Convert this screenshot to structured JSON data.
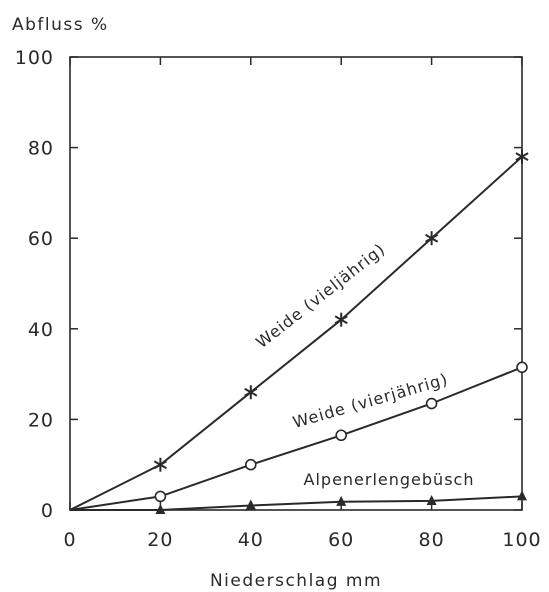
{
  "chart_data": {
    "type": "line",
    "ylabel": "Abfluss %",
    "xlabel": "Niederschlag mm",
    "xlim": [
      0,
      100
    ],
    "ylim": [
      0,
      100
    ],
    "xticks": [
      0,
      20,
      40,
      60,
      80,
      100
    ],
    "yticks": [
      0,
      20,
      40,
      60,
      80,
      100
    ],
    "grid": false,
    "legend": "none",
    "series": [
      {
        "name": "Weide (vieljährig)",
        "marker": "asterisk",
        "x": [
          0,
          20,
          40,
          60,
          80,
          100
        ],
        "y": [
          0,
          10,
          26,
          42,
          60,
          78
        ]
      },
      {
        "name": "Weide (vierjährig)",
        "marker": "circle",
        "x": [
          0,
          20,
          40,
          60,
          80,
          100
        ],
        "y": [
          0,
          3,
          10,
          16.5,
          23.5,
          31.5
        ]
      },
      {
        "name": "Alpenerlengebüsch",
        "marker": "triangle",
        "x": [
          0,
          20,
          40,
          60,
          80,
          100
        ],
        "y": [
          0,
          0,
          1,
          1.8,
          2,
          3
        ]
      }
    ],
    "line_color": "#2a2a2a"
  }
}
